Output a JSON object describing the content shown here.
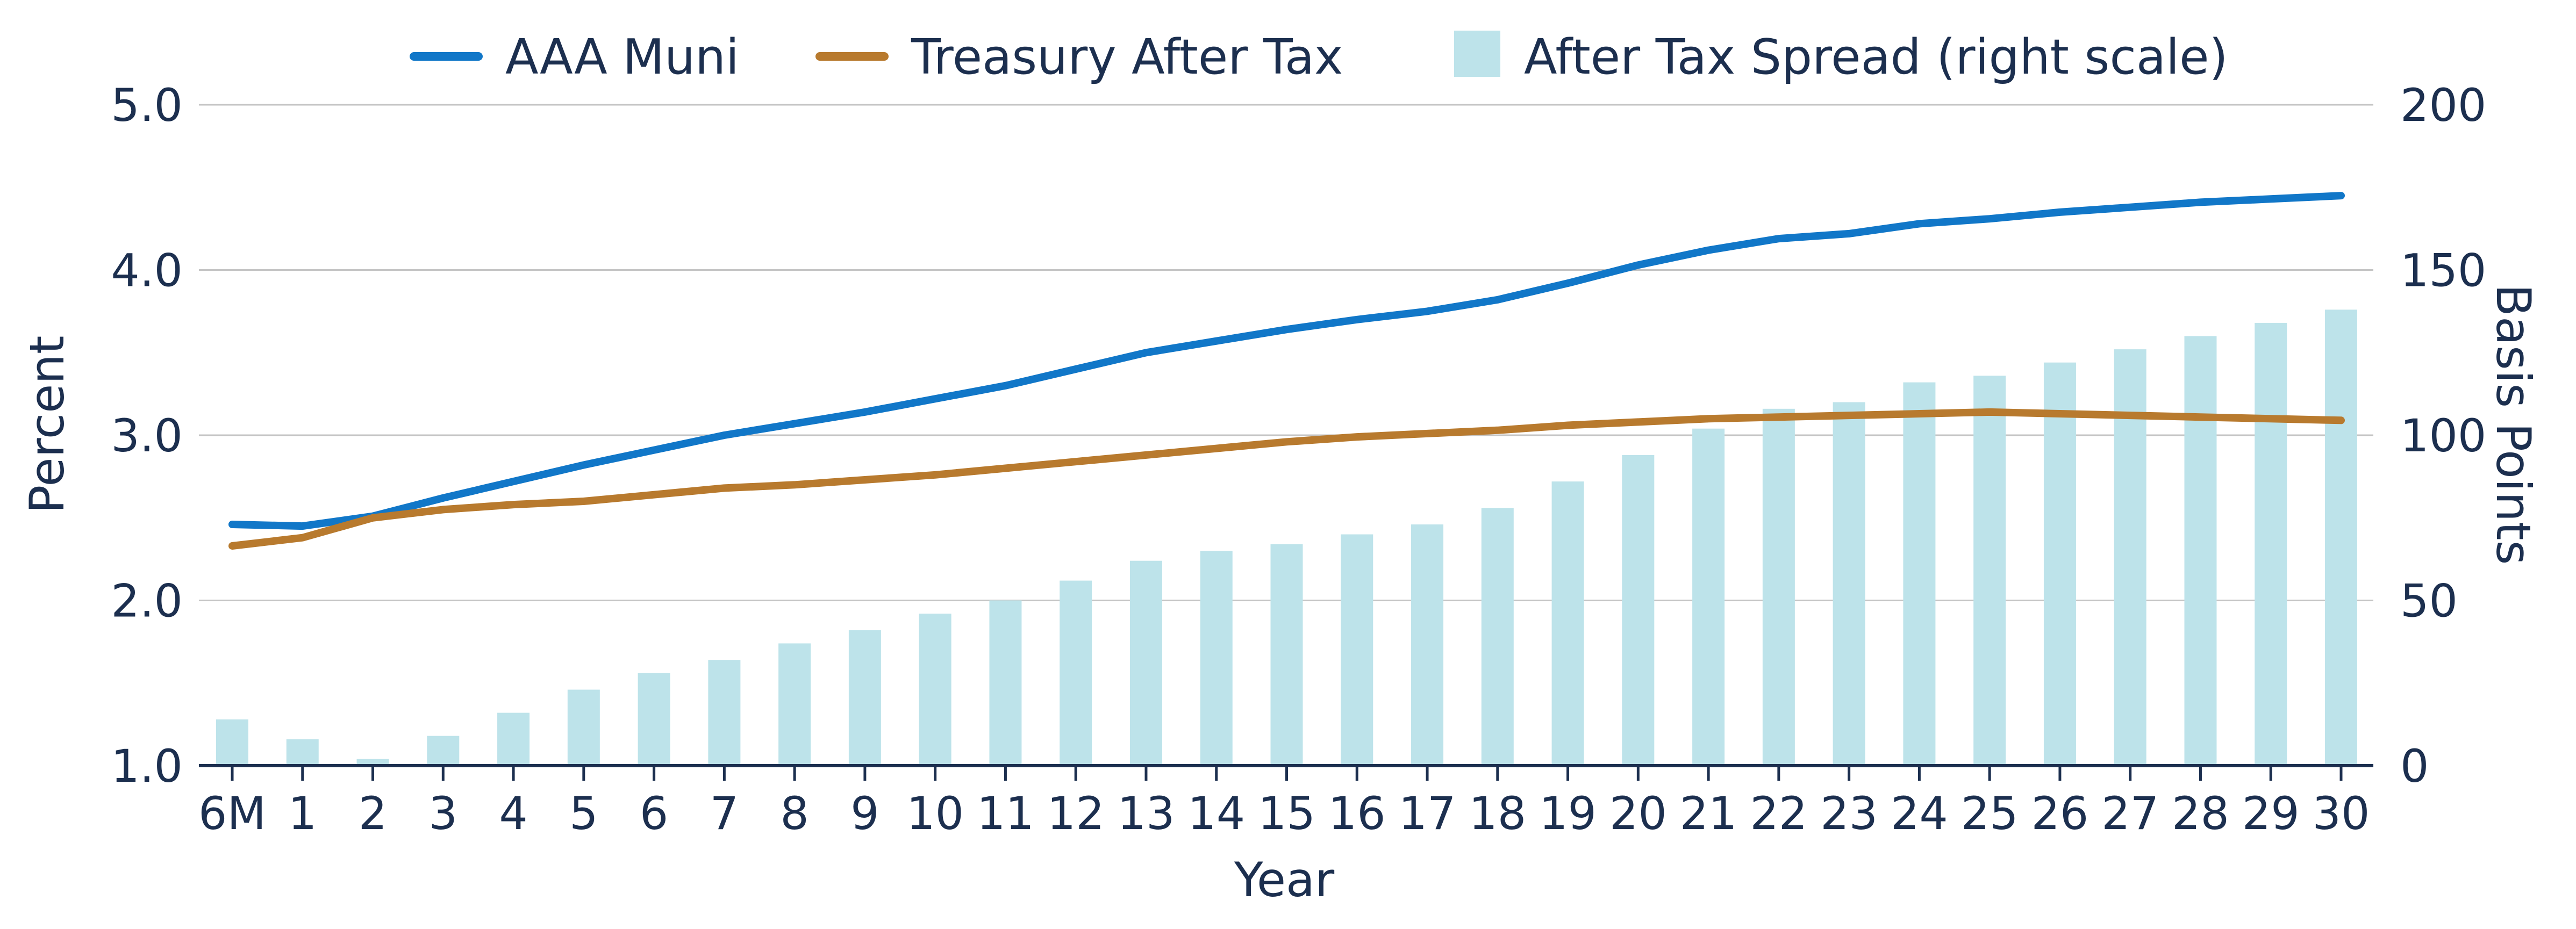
{
  "colors": {
    "muni": "#1177c8",
    "treasury": "#b87a2e",
    "spread": "#bde3ea",
    "text": "#1c2f4f"
  },
  "legend": [
    {
      "label": "AAA Muni",
      "kind": "line",
      "color": "#1177c8"
    },
    {
      "label": "Treasury After Tax",
      "kind": "line",
      "color": "#b87a2e"
    },
    {
      "label": "After Tax Spread (right scale)",
      "kind": "box",
      "color": "#bde3ea"
    }
  ],
  "chart_data": {
    "type": "bar+line",
    "xlabel": "Year",
    "ylabel_left": "Percent",
    "ylabel_right": "Basis Points",
    "ylim_left": [
      1.0,
      5.0
    ],
    "ylim_right": [
      0,
      200
    ],
    "yticks_left": [
      "1.0",
      "2.0",
      "3.0",
      "4.0",
      "5.0"
    ],
    "yticks_right": [
      "0",
      "50",
      "100",
      "150",
      "200"
    ],
    "grid": true,
    "legend_position": "top",
    "categories": [
      "6M",
      "1",
      "2",
      "3",
      "4",
      "5",
      "6",
      "7",
      "8",
      "9",
      "10",
      "11",
      "12",
      "13",
      "14",
      "15",
      "16",
      "17",
      "18",
      "19",
      "20",
      "21",
      "22",
      "23",
      "24",
      "25",
      "26",
      "27",
      "28",
      "29",
      "30"
    ],
    "series": [
      {
        "name": "AAA Muni",
        "type": "line",
        "axis": "left",
        "values": [
          2.46,
          2.45,
          2.51,
          2.62,
          2.72,
          2.82,
          2.91,
          3.0,
          3.07,
          3.14,
          3.22,
          3.3,
          3.4,
          3.5,
          3.57,
          3.64,
          3.7,
          3.75,
          3.82,
          3.92,
          4.03,
          4.12,
          4.19,
          4.22,
          4.28,
          4.31,
          4.35,
          4.38,
          4.41,
          4.43,
          4.45
        ]
      },
      {
        "name": "Treasury After Tax",
        "type": "line",
        "axis": "left",
        "values": [
          2.33,
          2.38,
          2.5,
          2.55,
          2.58,
          2.6,
          2.64,
          2.68,
          2.7,
          2.73,
          2.76,
          2.8,
          2.84,
          2.88,
          2.92,
          2.96,
          2.99,
          3.01,
          3.03,
          3.06,
          3.08,
          3.1,
          3.11,
          3.12,
          3.13,
          3.14,
          3.13,
          3.12,
          3.11,
          3.1,
          3.09
        ]
      },
      {
        "name": "After Tax Spread (right scale)",
        "type": "bar",
        "axis": "right",
        "values": [
          14,
          8,
          2,
          9,
          16,
          23,
          28,
          32,
          37,
          41,
          46,
          50,
          56,
          62,
          65,
          67,
          70,
          73,
          78,
          86,
          94,
          102,
          108,
          110,
          116,
          118,
          122,
          126,
          130,
          134,
          138
        ]
      }
    ]
  }
}
